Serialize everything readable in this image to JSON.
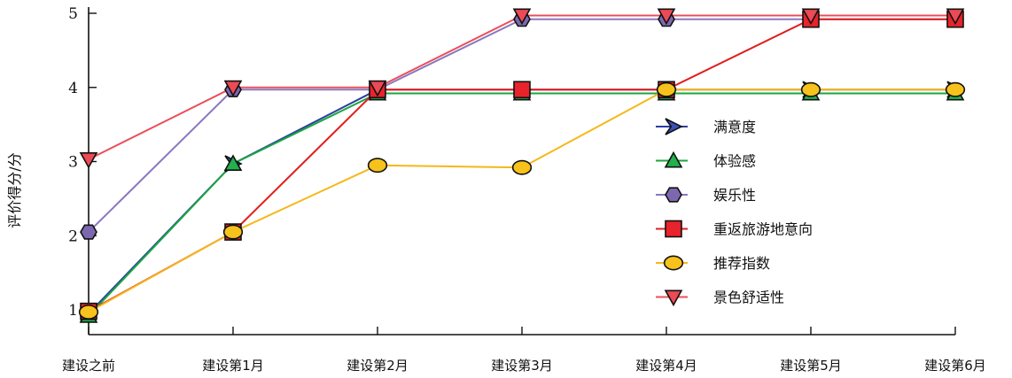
{
  "chart_data": {
    "type": "line",
    "title": "",
    "xlabel": "",
    "ylabel": "评价得分/分",
    "categories": [
      "建设之前",
      "建设第1月",
      "建设第2月",
      "建设第3月",
      "建设第4月",
      "建设第5月",
      "建设第6月"
    ],
    "yticks": [
      "1",
      "2",
      "3",
      "4",
      "5"
    ],
    "ylim": [
      1,
      5
    ],
    "grid": false,
    "legend_position": "right-middle",
    "series": [
      {
        "name": "满意度",
        "marker": "chevron",
        "color": "#2b3fa0",
        "fill": "#3a4fb8",
        "values": [
          0.95,
          2.97,
          3.97,
          3.97,
          3.97,
          3.97,
          3.97
        ]
      },
      {
        "name": "体验感",
        "marker": "triangle-up",
        "color": "#1aa640",
        "fill": "#22b14c",
        "values": [
          0.92,
          2.97,
          3.92,
          3.92,
          3.92,
          3.92,
          3.92
        ]
      },
      {
        "name": "娱乐性",
        "marker": "hexagon",
        "color": "#8a78c0",
        "fill": "#7d68b0",
        "values": [
          2.05,
          3.97,
          3.97,
          4.92,
          4.92,
          4.92,
          4.92
        ]
      },
      {
        "name": "重返旅游地意向",
        "marker": "square",
        "color": "#e11e1e",
        "fill": "#e8232b",
        "values": [
          0.98,
          2.05,
          3.97,
          3.97,
          3.97,
          4.92,
          4.92
        ]
      },
      {
        "name": "推荐指数",
        "marker": "circle",
        "color": "#f5b81a",
        "fill": "#f7c21c",
        "values": [
          0.97,
          2.05,
          2.95,
          2.92,
          3.97,
          3.97,
          3.97
        ]
      },
      {
        "name": "景色舒适性",
        "marker": "triangle-down",
        "color": "#e9505a",
        "fill": "#ec4a55",
        "values": [
          3.03,
          4.0,
          4.0,
          4.97,
          4.97,
          4.97,
          4.97
        ]
      }
    ]
  }
}
